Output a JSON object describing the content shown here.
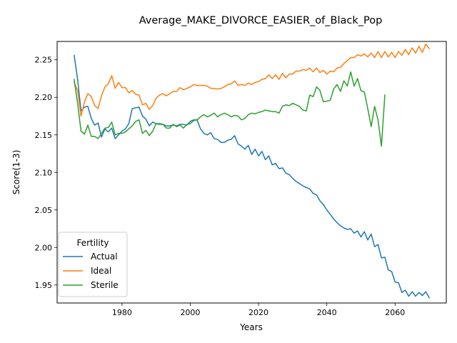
{
  "chart_data": {
    "type": "line",
    "title": "Average_MAKE_DIVORCE_EASIER_of_Black_Pop",
    "xlabel": "Years",
    "ylabel": "Score(1-3)",
    "xlim": [
      1961,
      2075
    ],
    "ylim": [
      1.926,
      2.2745
    ],
    "x_ticks": [
      1980,
      2000,
      2020,
      2040,
      2060
    ],
    "x_tick_labels": [
      "1980",
      "2000",
      "2020",
      "2040",
      "2060"
    ],
    "y_ticks": [
      1.95,
      2.0,
      2.05,
      2.1,
      2.15,
      2.2,
      2.25
    ],
    "y_tick_labels": [
      "1.95",
      "2.00",
      "2.05",
      "2.10",
      "2.15",
      "2.20",
      "2.25"
    ],
    "grid": false,
    "legend": {
      "title": "Fertility",
      "placement": "lower-left"
    },
    "series": [
      {
        "name": "Actual",
        "color": "#1f77b4",
        "x_start": 1966,
        "values": [
          2.256,
          2.224,
          2.182,
          2.187,
          2.188,
          2.172,
          2.163,
          2.166,
          2.147,
          2.158,
          2.154,
          2.159,
          2.145,
          2.15,
          2.155,
          2.158,
          2.165,
          2.185,
          2.186,
          2.187,
          2.175,
          2.171,
          2.162,
          2.167,
          2.165,
          2.164,
          2.164,
          2.162,
          2.162,
          2.163,
          2.162,
          2.164,
          2.164,
          2.163,
          2.168,
          2.17,
          2.17,
          2.158,
          2.152,
          2.15,
          2.153,
          2.145,
          2.144,
          2.14,
          2.14,
          2.143,
          2.144,
          2.149,
          2.138,
          2.135,
          2.131,
          2.136,
          2.124,
          2.131,
          2.122,
          2.128,
          2.117,
          2.122,
          2.11,
          2.112,
          2.105,
          2.106,
          2.099,
          2.097,
          2.092,
          2.088,
          2.085,
          2.082,
          2.08,
          2.078,
          2.072,
          2.07,
          2.062,
          2.057,
          2.05,
          2.044,
          2.038,
          2.033,
          2.029,
          2.026,
          2.024,
          2.025,
          2.019,
          2.022,
          2.014,
          2.021,
          2.01,
          2.018,
          2.001,
          2.004,
          1.986,
          1.987,
          1.97,
          1.968,
          1.954,
          1.953,
          1.94,
          1.943,
          1.935,
          1.941,
          1.935,
          1.94,
          1.936,
          1.941,
          1.933
        ]
      },
      {
        "name": "Ideal",
        "color": "#ff7f0e",
        "x_start": 1966,
        "values": [
          2.22,
          2.209,
          2.175,
          2.194,
          2.205,
          2.201,
          2.189,
          2.185,
          2.202,
          2.214,
          2.218,
          2.229,
          2.212,
          2.22,
          2.213,
          2.213,
          2.206,
          2.209,
          2.204,
          2.203,
          2.19,
          2.192,
          2.184,
          2.189,
          2.199,
          2.203,
          2.205,
          2.202,
          2.205,
          2.208,
          2.208,
          2.213,
          2.21,
          2.212,
          2.214,
          2.217,
          2.216,
          2.216,
          2.216,
          2.215,
          2.212,
          2.212,
          2.211,
          2.212,
          2.214,
          2.217,
          2.218,
          2.222,
          2.216,
          2.217,
          2.216,
          2.219,
          2.217,
          2.22,
          2.221,
          2.224,
          2.225,
          2.23,
          2.225,
          2.23,
          2.224,
          2.232,
          2.226,
          2.231,
          2.231,
          2.235,
          2.235,
          2.237,
          2.236,
          2.239,
          2.234,
          2.239,
          2.233,
          2.236,
          2.231,
          2.235,
          2.234,
          2.239,
          2.24,
          2.245,
          2.249,
          2.253,
          2.253,
          2.257,
          2.255,
          2.258,
          2.254,
          2.259,
          2.253,
          2.261,
          2.253,
          2.261,
          2.254,
          2.26,
          2.253,
          2.261,
          2.256,
          2.264,
          2.257,
          2.266,
          2.259,
          2.268,
          2.26,
          2.271,
          2.265
        ]
      },
      {
        "name": "Sterile",
        "color": "#2ca02c",
        "x_start": 1966,
        "values": [
          2.224,
          2.192,
          2.155,
          2.151,
          2.163,
          2.148,
          2.148,
          2.145,
          2.152,
          2.159,
          2.16,
          2.167,
          2.15,
          2.152,
          2.152,
          2.154,
          2.158,
          2.162,
          2.168,
          2.17,
          2.152,
          2.156,
          2.149,
          2.155,
          2.165,
          2.165,
          2.164,
          2.159,
          2.159,
          2.164,
          2.161,
          2.163,
          2.159,
          2.164,
          2.165,
          2.169,
          2.17,
          2.174,
          2.177,
          2.174,
          2.176,
          2.179,
          2.174,
          2.177,
          2.179,
          2.177,
          2.174,
          2.176,
          2.175,
          2.17,
          2.172,
          2.177,
          2.179,
          2.178,
          2.18,
          2.181,
          2.183,
          2.182,
          2.181,
          2.181,
          2.179,
          2.188,
          2.19,
          2.189,
          2.192,
          2.19,
          2.188,
          2.183,
          2.182,
          2.203,
          2.201,
          2.214,
          2.209,
          2.194,
          2.195,
          2.196,
          2.211,
          2.217,
          2.208,
          2.222,
          2.215,
          2.234,
          2.215,
          2.225,
          2.209,
          2.207,
          2.185,
          2.161,
          2.188,
          2.17,
          2.135,
          2.203
        ]
      }
    ]
  }
}
